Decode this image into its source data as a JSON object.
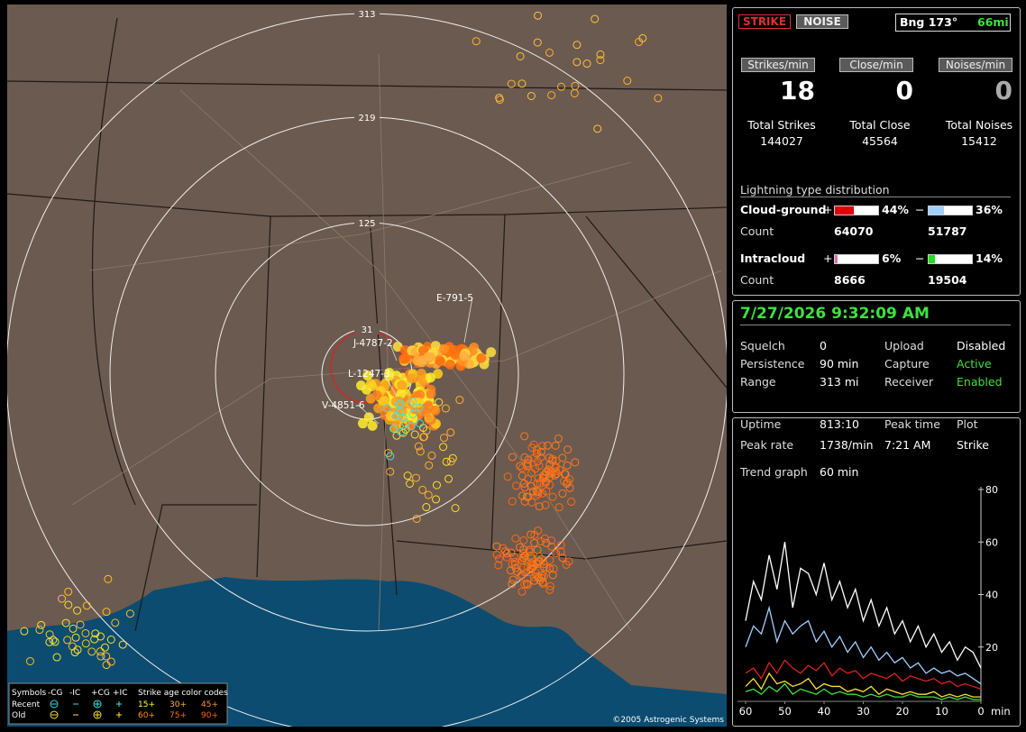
{
  "map": {
    "range_labels": [
      "313",
      "219",
      "125",
      "31"
    ],
    "storm_labels": [
      "J-4787-2",
      "L-1247-3",
      "V-4851-6",
      "E-791-5"
    ],
    "copyright": "©2005 Astrogenic Systems",
    "legend": {
      "title": "Symbols",
      "headers": [
        "-CG",
        "-IC",
        "+CG",
        "+IC"
      ],
      "age_title": "Strike age color codes",
      "rows": [
        {
          "label": "Recent",
          "ages": [
            "15+",
            "30+",
            "45+"
          ]
        },
        {
          "label": "Old",
          "ages": [
            "60+",
            "75+",
            "90+"
          ]
        }
      ]
    }
  },
  "mode_buttons": [
    "STRIKE",
    "NOISE"
  ],
  "bearing": "Bng 173°",
  "distance": "66mi",
  "rates": [
    {
      "label": "Strikes/min",
      "value": 18
    },
    {
      "label": "Close/min",
      "value": 0
    },
    {
      "label": "Noises/min",
      "value": 0
    }
  ],
  "totals": [
    {
      "label": "Total Strikes",
      "value": 144027
    },
    {
      "label": "Total Close",
      "value": 45564
    },
    {
      "label": "Total Noises",
      "value": 15412
    }
  ],
  "distribution": {
    "title": "Lightning type distribution",
    "signs": [
      "+",
      "−"
    ],
    "count_label": "Count",
    "rows": [
      {
        "label": "Cloud-ground",
        "pos_value": 44,
        "pos_label": "44%",
        "neg_value": 36,
        "neg_label": "36%",
        "pos_count": 64070,
        "neg_count": 51787
      },
      {
        "label": "Intracloud",
        "pos_value": 6,
        "pos_label": "6%",
        "neg_value": 14,
        "neg_label": "14%",
        "pos_count": 8666,
        "neg_count": 19504
      }
    ]
  },
  "datetime": "7/27/2026 9:32:09 AM",
  "settings": [
    [
      "Squelch",
      "0",
      "Upload",
      "Disabled"
    ],
    [
      "Persistence",
      "90 min",
      "Capture",
      "Active"
    ],
    [
      "Range",
      "313 mi",
      "Receiver",
      "Enabled"
    ]
  ],
  "status": {
    "uptime": {
      "label": "Uptime",
      "value": "813:10"
    },
    "peak_rate": {
      "label": "Peak rate",
      "value": "1738/min"
    },
    "peak_time": {
      "label": "Peak time",
      "value": "7:21 AM"
    },
    "plot": {
      "label": "Plot",
      "value": "Strike"
    },
    "trend": {
      "label": "Trend graph",
      "value": "60 min"
    }
  },
  "chart_data": {
    "type": "line",
    "x": [
      60,
      58,
      56,
      54,
      52,
      50,
      48,
      46,
      44,
      42,
      40,
      38,
      36,
      34,
      32,
      30,
      28,
      26,
      24,
      22,
      20,
      18,
      16,
      14,
      12,
      10,
      8,
      6,
      4,
      2,
      0
    ],
    "xlim": [
      60,
      0
    ],
    "xticks": [
      60,
      50,
      40,
      30,
      20,
      10,
      0
    ],
    "x_label": "min",
    "ylim": [
      0,
      80
    ],
    "yticks": [
      20,
      40,
      60,
      80
    ],
    "series": [
      {
        "color": "#ffffff",
        "values": [
          30,
          45,
          38,
          55,
          42,
          60,
          35,
          50,
          48,
          40,
          52,
          38,
          45,
          35,
          42,
          30,
          38,
          28,
          35,
          25,
          30,
          22,
          28,
          20,
          25,
          18,
          22,
          15,
          20,
          18,
          12
        ]
      },
      {
        "color": "#9fd0ff",
        "values": [
          20,
          28,
          25,
          35,
          22,
          30,
          25,
          28,
          30,
          22,
          26,
          20,
          24,
          18,
          22,
          16,
          20,
          15,
          18,
          14,
          16,
          12,
          14,
          10,
          12,
          10,
          11,
          9,
          10,
          8,
          6
        ]
      },
      {
        "color": "#e02020",
        "values": [
          10,
          12,
          8,
          14,
          10,
          15,
          12,
          10,
          13,
          11,
          14,
          9,
          12,
          10,
          11,
          8,
          10,
          9,
          8,
          10,
          7,
          9,
          8,
          7,
          8,
          6,
          7,
          5,
          6,
          5,
          4
        ]
      },
      {
        "color": "#ffe030",
        "values": [
          5,
          8,
          4,
          10,
          6,
          7,
          5,
          6,
          8,
          4,
          6,
          5,
          5,
          3,
          4,
          3,
          5,
          2,
          4,
          3,
          2,
          3,
          2,
          2,
          3,
          1,
          2,
          1,
          2,
          1,
          1
        ]
      },
      {
        "color": "#40e040",
        "values": [
          3,
          4,
          2,
          5,
          3,
          6,
          2,
          4,
          3,
          2,
          4,
          2,
          3,
          2,
          2,
          1,
          2,
          1,
          2,
          1,
          1,
          2,
          1,
          1,
          1,
          0,
          1,
          0,
          1,
          0,
          0
        ]
      }
    ]
  }
}
